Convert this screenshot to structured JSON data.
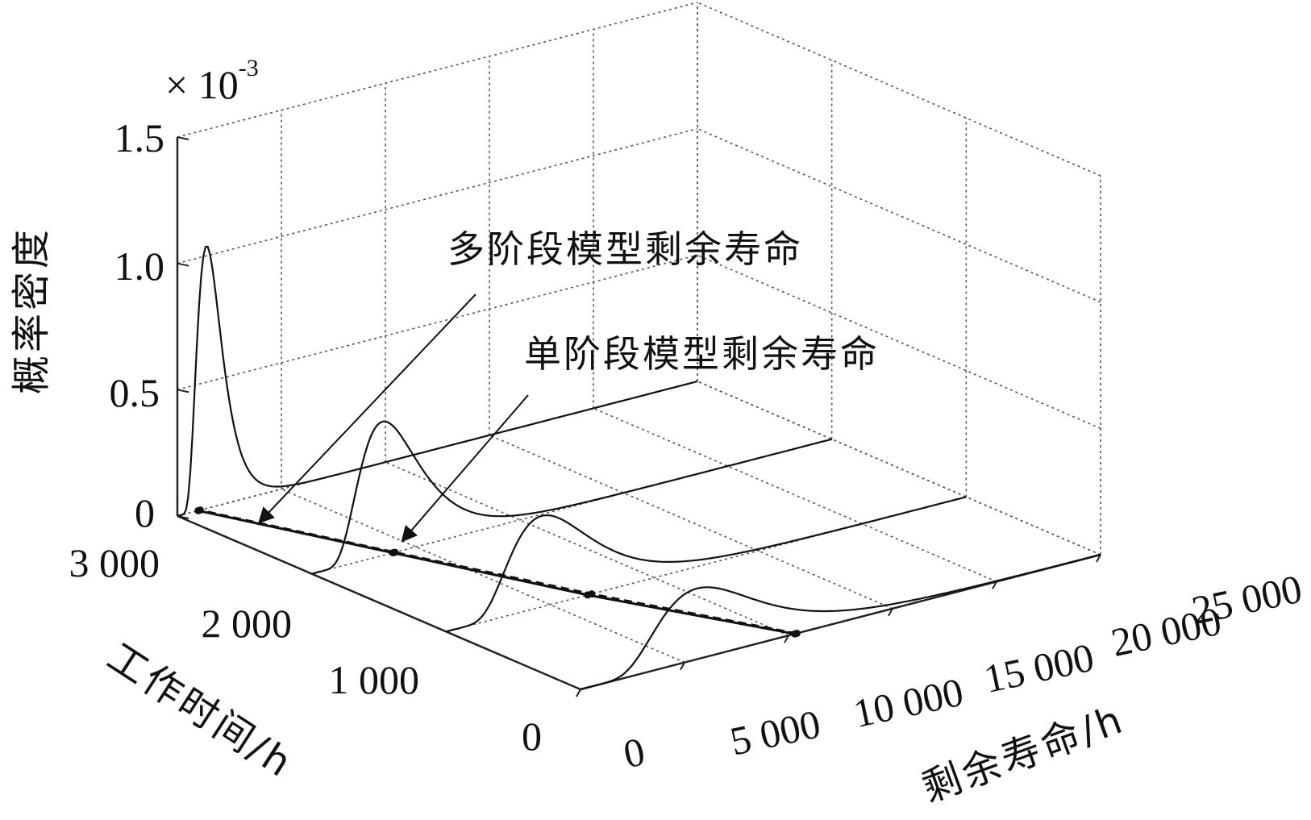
{
  "chart_data": {
    "type": "line",
    "subtype": "3d-density-waterfall",
    "multiplier_base": "× 10",
    "multiplier_exp": "-3",
    "axes": {
      "x": {
        "label": "工作时间/h",
        "ticks": [
          "0",
          "1 000",
          "2 000",
          "3 000"
        ],
        "range": [
          0,
          3000
        ]
      },
      "y": {
        "label": "剩余寿命/h",
        "ticks": [
          "0",
          "5 000",
          "10 000",
          "15 000",
          "20 000",
          "25 000"
        ],
        "range": [
          0,
          25000
        ]
      },
      "z": {
        "label": "概率密度",
        "ticks": [
          "0",
          "0.5",
          "1.0",
          "1.5"
        ],
        "range": [
          0,
          0.0015
        ],
        "tick_values": [
          0,
          0.0005,
          0.001,
          0.0015
        ]
      }
    },
    "grid": true,
    "annotations": [
      {
        "text": "多阶段模型剩余寿命",
        "points_to": "多阶段模型剩余寿命 trajectory"
      },
      {
        "text": "单阶段模型剩余寿命",
        "points_to": "单阶段模型剩余寿命 trajectory"
      }
    ],
    "series": [
      {
        "name": "多阶段模型剩余寿命",
        "style": "dashed",
        "x": [
          0,
          1000,
          2000,
          3000
        ],
        "y": [
          10400,
          7000,
          4000,
          1100
        ]
      },
      {
        "name": "单阶段模型剩余寿命",
        "style": "solid",
        "x": [
          0,
          1000,
          2000,
          3000
        ],
        "y": [
          10300,
          6800,
          3900,
          1000
        ]
      }
    ],
    "density_curves": [
      {
        "work_time": 0,
        "peak_rul": 5600,
        "peak_density": 0.00028
      },
      {
        "work_time": 1000,
        "peak_rul": 4600,
        "peak_density": 0.00036
      },
      {
        "work_time": 2000,
        "peak_rul": 3400,
        "peak_density": 0.00053
      },
      {
        "work_time": 3000,
        "peak_rul": 1400,
        "peak_density": 0.00104
      }
    ]
  }
}
